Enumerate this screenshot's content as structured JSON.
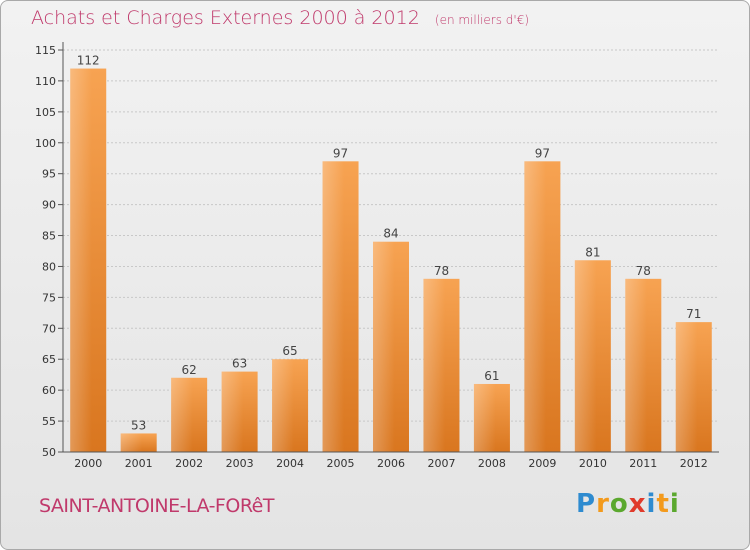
{
  "header": {
    "title": "Achats et Charges Externes 2000 à 2012",
    "unit": "(en milliers d'€)"
  },
  "footer": {
    "place": "SAINT-ANTOINE-LA-FORêT",
    "logo_letters": [
      "P",
      "r",
      "o",
      "x",
      "i",
      "t",
      "i"
    ],
    "logo_colors": [
      "#2e8bd0",
      "#f39a1c",
      "#5ba82e",
      "#e03a2b",
      "#2e8bd0",
      "#f39a1c",
      "#5ba82e"
    ]
  },
  "colors": {
    "bar_top": "#f7a352",
    "bar_bottom": "#d9761f",
    "axis": "#555555",
    "grid": "#c8c8c8",
    "title": "#c0396b"
  },
  "chart_data": {
    "type": "bar",
    "title": "Achats et Charges Externes 2000 à 2012",
    "subtitle": "(en milliers d'€)",
    "categories": [
      "2000",
      "2001",
      "2002",
      "2003",
      "2004",
      "2005",
      "2006",
      "2007",
      "2008",
      "2009",
      "2010",
      "2011",
      "2012"
    ],
    "values": [
      112,
      53,
      62,
      63,
      65,
      97,
      84,
      78,
      61,
      97,
      81,
      78,
      71
    ],
    "ylim": [
      50,
      115
    ],
    "yticks": [
      50,
      55,
      60,
      65,
      70,
      75,
      80,
      85,
      90,
      95,
      100,
      105,
      110,
      115
    ],
    "grid": true,
    "data_labels": true
  }
}
